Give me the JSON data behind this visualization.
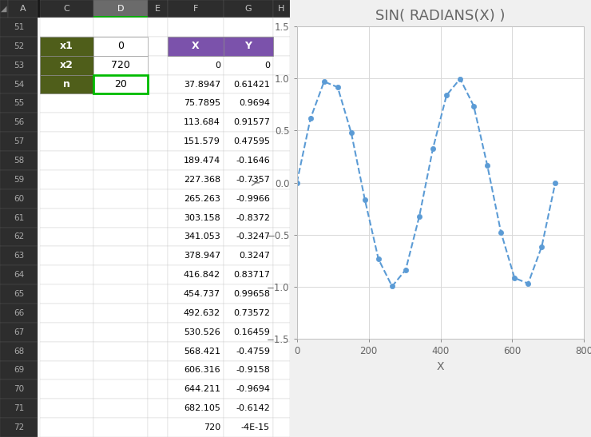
{
  "title": "SIN( RADIANS(X) )",
  "xlabel": "X",
  "ylabel": "Y",
  "x_values": [
    0,
    37.8947,
    75.7895,
    113.684,
    151.579,
    189.474,
    227.368,
    265.263,
    303.158,
    341.053,
    378.947,
    416.842,
    454.737,
    492.632,
    530.526,
    568.421,
    606.316,
    644.211,
    682.105,
    720
  ],
  "y_values": [
    0,
    0.61421,
    0.9694,
    0.91577,
    0.47595,
    -0.1646,
    -0.7357,
    -0.9966,
    -0.8372,
    -0.3247,
    0.3247,
    0.83717,
    0.99658,
    0.73572,
    0.16459,
    -0.4759,
    -0.9158,
    -0.9694,
    -0.6142,
    0.0
  ],
  "line_color": "#5B9BD5",
  "marker_color": "#5B9BD5",
  "xlim": [
    0,
    800
  ],
  "ylim": [
    -1.5,
    1.5
  ],
  "xticks": [
    0,
    200,
    400,
    600,
    800
  ],
  "yticks": [
    -1.5,
    -1,
    -0.5,
    0,
    0.5,
    1,
    1.5
  ],
  "title_fontsize": 13,
  "axis_label_fontsize": 10,
  "tick_fontsize": 8.5,
  "fig_bg": "#f0f0f0",
  "header_bg": "#2d2d2d",
  "header_text": "#c8c8c8",
  "header_D_bg": "#6b6b6b",
  "header_D_text": "#ffffff",
  "row_num_bg": "#2d2d2d",
  "row_num_text": "#aaaaaa",
  "cell_bg": "#ffffff",
  "cell_text": "#000000",
  "params_label_bg": "#4f5e1a",
  "params_label_text": "#ffffff",
  "params_value_bg": "#ffffff",
  "params_value_text": "#000000",
  "xy_header_bg": "#7b52ab",
  "xy_header_text": "#ffffff",
  "grid_color": "#d8d8d8",
  "chart_bg": "#ffffff",
  "chart_border": "#c0c0c0",
  "x_labels": [
    "0",
    "37.8947",
    "75.7895",
    "113.684",
    "151.579",
    "189.474",
    "227.368",
    "265.263",
    "303.158",
    "341.053",
    "378.947",
    "416.842",
    "454.737",
    "492.632",
    "530.526",
    "568.421",
    "606.316",
    "644.211",
    "682.105",
    "720"
  ],
  "y_labels": [
    "0",
    "0.61421",
    "0.9694",
    "0.91577",
    "0.47595",
    "-0.1646",
    "-0.7357",
    "-0.9966",
    "-0.8372",
    "-0.3247",
    "0.3247",
    "0.83717",
    "0.99658",
    "0.73572",
    "0.16459",
    "-0.4759",
    "-0.9158",
    "-0.9694",
    "-0.6142",
    "-4E-15"
  ],
  "params": [
    {
      "label": "x1",
      "value": "0"
    },
    {
      "label": "x2",
      "value": "720"
    },
    {
      "label": "n",
      "value": "20"
    }
  ],
  "col_headers": [
    "A",
    "C",
    "D",
    "E",
    "F",
    "G",
    "H"
  ],
  "row_numbers": [
    51,
    52,
    53,
    54,
    55,
    56,
    57,
    58,
    59,
    60,
    61,
    62,
    63,
    64,
    65,
    66,
    67,
    68,
    69,
    70,
    71,
    72
  ]
}
